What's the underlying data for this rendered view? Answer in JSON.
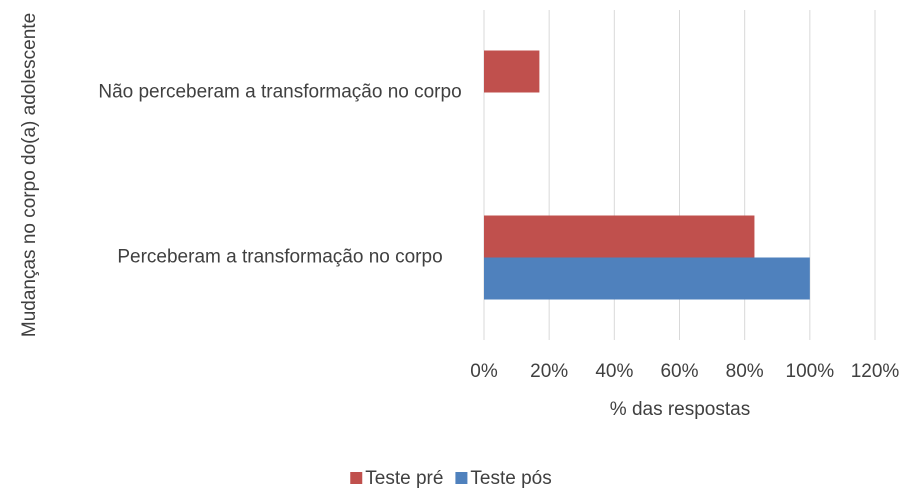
{
  "chart_data": {
    "type": "hbar",
    "categories": [
      "Não perceberam a transformação no corpo",
      "Perceberam a transformação no corpo"
    ],
    "series": [
      {
        "name": "Teste pré",
        "color": "#c0504d",
        "values": [
          17,
          83
        ]
      },
      {
        "name": "Teste pós",
        "color": "#4f81bd",
        "values": [
          0,
          100
        ]
      }
    ],
    "xlim": [
      0,
      120
    ],
    "xticks": [
      {
        "value": 0,
        "label": "0%"
      },
      {
        "value": 20,
        "label": "20%"
      },
      {
        "value": 40,
        "label": "40%"
      },
      {
        "value": 60,
        "label": "60%"
      },
      {
        "value": 80,
        "label": "80%"
      },
      {
        "value": 100,
        "label": "100%"
      },
      {
        "value": 120,
        "label": "120%"
      }
    ],
    "x_label": "% das respostas",
    "y_label": "Mudanças no corpo do(a) adolescente",
    "grid": true,
    "legend": "bottom"
  }
}
